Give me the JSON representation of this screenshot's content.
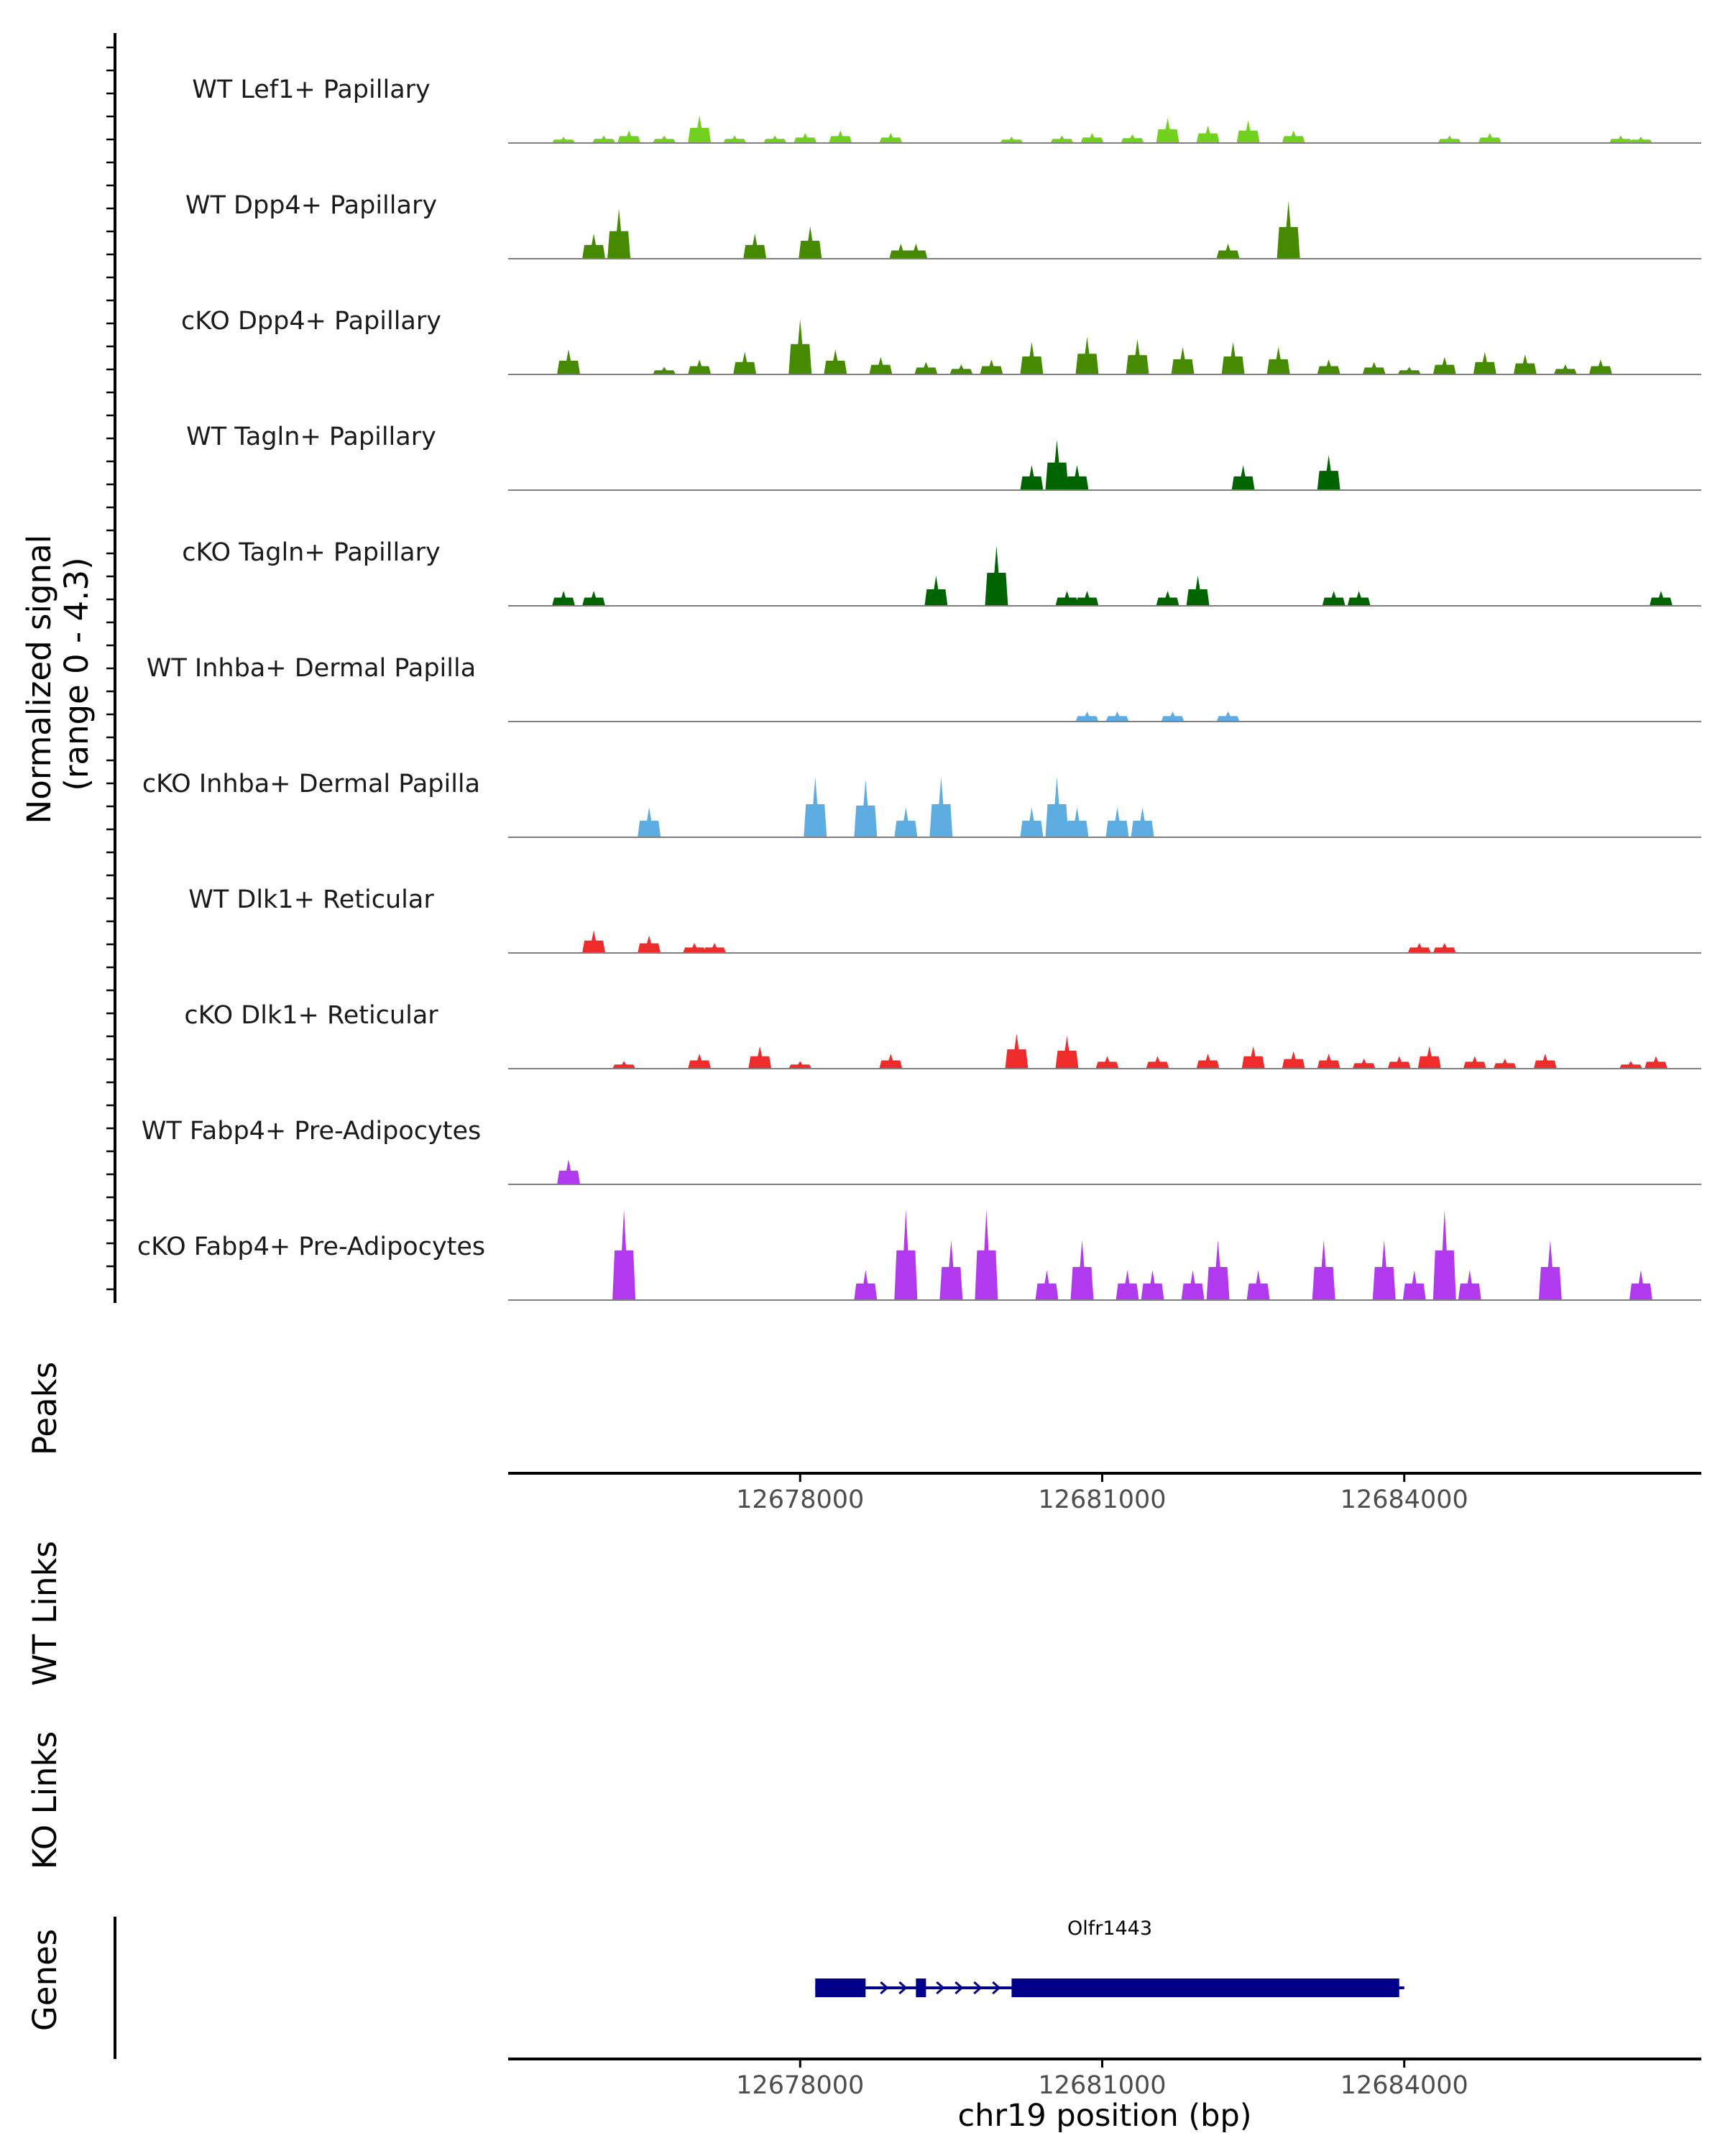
{
  "chart_data": {
    "type": "area",
    "title": "",
    "ylabel": "Normalized signal\n(range 0 - 4.3)",
    "xlabel": "chr19 position (bp)",
    "xlim": [
      12675100,
      12686950
    ],
    "ylim": [
      0,
      4.3
    ],
    "xticks": [
      12678000,
      12681000,
      12684000
    ],
    "xtick_labels": [
      "12678000",
      "12681000",
      "12684000"
    ],
    "tracks": [
      {
        "name": "WT Lef1+ Papillary",
        "color": "#72d11f",
        "peaks": [
          [
            12675650,
            0.25
          ],
          [
            12676050,
            0.3
          ],
          [
            12676300,
            0.5
          ],
          [
            12676650,
            0.3
          ],
          [
            12677000,
            1.1
          ],
          [
            12677350,
            0.3
          ],
          [
            12677750,
            0.3
          ],
          [
            12678050,
            0.4
          ],
          [
            12678400,
            0.5
          ],
          [
            12678900,
            0.4
          ],
          [
            12680100,
            0.25
          ],
          [
            12680600,
            0.3
          ],
          [
            12680900,
            0.4
          ],
          [
            12681300,
            0.35
          ],
          [
            12681650,
            1.0
          ],
          [
            12682050,
            0.7
          ],
          [
            12682450,
            0.9
          ],
          [
            12682900,
            0.5
          ],
          [
            12684450,
            0.3
          ],
          [
            12684850,
            0.4
          ],
          [
            12686150,
            0.3
          ],
          [
            12686350,
            0.25
          ]
        ]
      },
      {
        "name": "WT Dpp4+ Papillary",
        "color": "#458a00",
        "peaks": [
          [
            12675950,
            1.0
          ],
          [
            12676200,
            2.0
          ],
          [
            12677550,
            1.0
          ],
          [
            12678100,
            1.3
          ],
          [
            12679000,
            0.6
          ],
          [
            12679150,
            0.6
          ],
          [
            12682250,
            0.6
          ],
          [
            12682850,
            2.3
          ]
        ]
      },
      {
        "name": "cKO Dpp4+ Papillary",
        "color": "#458a00",
        "peaks": [
          [
            12675700,
            1.0
          ],
          [
            12676650,
            0.3
          ],
          [
            12677000,
            0.6
          ],
          [
            12677450,
            0.9
          ],
          [
            12678000,
            2.2
          ],
          [
            12678350,
            1.0
          ],
          [
            12678800,
            0.7
          ],
          [
            12679250,
            0.5
          ],
          [
            12679600,
            0.4
          ],
          [
            12679900,
            0.6
          ],
          [
            12680300,
            1.3
          ],
          [
            12680850,
            1.5
          ],
          [
            12681350,
            1.4
          ],
          [
            12681800,
            1.1
          ],
          [
            12682300,
            1.3
          ],
          [
            12682750,
            1.1
          ],
          [
            12683250,
            0.6
          ],
          [
            12683700,
            0.5
          ],
          [
            12684050,
            0.3
          ],
          [
            12684400,
            0.7
          ],
          [
            12684800,
            0.9
          ],
          [
            12685200,
            0.8
          ],
          [
            12685600,
            0.4
          ],
          [
            12685950,
            0.6
          ]
        ]
      },
      {
        "name": "WT Tagln+ Papillary",
        "color": "#006400",
        "peaks": [
          [
            12680300,
            1.0
          ],
          [
            12680550,
            2.0
          ],
          [
            12680750,
            1.0
          ],
          [
            12682400,
            1.0
          ],
          [
            12683250,
            1.4
          ]
        ]
      },
      {
        "name": "cKO Tagln+ Papillary",
        "color": "#006400",
        "peaks": [
          [
            12675650,
            0.6
          ],
          [
            12675950,
            0.6
          ],
          [
            12679350,
            1.2
          ],
          [
            12679950,
            2.4
          ],
          [
            12680650,
            0.6
          ],
          [
            12680850,
            0.6
          ],
          [
            12681650,
            0.6
          ],
          [
            12681950,
            1.2
          ],
          [
            12683300,
            0.6
          ],
          [
            12683550,
            0.6
          ],
          [
            12686550,
            0.6
          ]
        ]
      },
      {
        "name": "WT Inhba+ Dermal Papilla",
        "color": "#5dade2",
        "peaks": [
          [
            12680850,
            0.4
          ],
          [
            12681150,
            0.4
          ],
          [
            12681700,
            0.4
          ],
          [
            12682250,
            0.4
          ]
        ]
      },
      {
        "name": "cKO Inhba+ Dermal Papilla",
        "color": "#5dade2",
        "peaks": [
          [
            12676500,
            1.2
          ],
          [
            12678150,
            2.4
          ],
          [
            12678650,
            2.3
          ],
          [
            12679050,
            1.2
          ],
          [
            12679400,
            2.4
          ],
          [
            12680300,
            1.2
          ],
          [
            12680550,
            2.4
          ],
          [
            12680750,
            1.2
          ],
          [
            12681150,
            1.2
          ],
          [
            12681400,
            1.2
          ]
        ]
      },
      {
        "name": "WT Dlk1+ Reticular",
        "color": "#ee2c2c",
        "peaks": [
          [
            12675950,
            0.9
          ],
          [
            12676500,
            0.7
          ],
          [
            12676950,
            0.4
          ],
          [
            12677150,
            0.4
          ],
          [
            12684150,
            0.4
          ],
          [
            12684400,
            0.4
          ]
        ]
      },
      {
        "name": "cKO Dlk1+ Reticular",
        "color": "#ee2c2c",
        "peaks": [
          [
            12676250,
            0.3
          ],
          [
            12677000,
            0.6
          ],
          [
            12677600,
            0.9
          ],
          [
            12678000,
            0.3
          ],
          [
            12678900,
            0.6
          ],
          [
            12680150,
            1.4
          ],
          [
            12680650,
            1.3
          ],
          [
            12681050,
            0.5
          ],
          [
            12681550,
            0.5
          ],
          [
            12682050,
            0.6
          ],
          [
            12682500,
            0.9
          ],
          [
            12682900,
            0.7
          ],
          [
            12683250,
            0.6
          ],
          [
            12683600,
            0.4
          ],
          [
            12683950,
            0.5
          ],
          [
            12684250,
            0.9
          ],
          [
            12684700,
            0.5
          ],
          [
            12685000,
            0.4
          ],
          [
            12685400,
            0.6
          ],
          [
            12686250,
            0.3
          ],
          [
            12686500,
            0.5
          ]
        ]
      },
      {
        "name": "WT Fabp4+ Pre-Adipocytes",
        "color": "#b23aee",
        "peaks": [
          [
            12675700,
            1.0
          ]
        ]
      },
      {
        "name": "cKO Fabp4+ Pre-Adipocytes",
        "color": "#b23aee",
        "peaks": [
          [
            12676250,
            3.6
          ],
          [
            12678650,
            1.2
          ],
          [
            12679050,
            3.6
          ],
          [
            12679500,
            2.4
          ],
          [
            12679850,
            3.6
          ],
          [
            12680450,
            1.2
          ],
          [
            12680800,
            2.4
          ],
          [
            12681250,
            1.2
          ],
          [
            12681500,
            1.2
          ],
          [
            12681900,
            1.2
          ],
          [
            12682150,
            2.4
          ],
          [
            12682550,
            1.2
          ],
          [
            12683200,
            2.4
          ],
          [
            12683800,
            2.4
          ],
          [
            12684100,
            1.2
          ],
          [
            12684400,
            3.6
          ],
          [
            12684650,
            1.2
          ],
          [
            12685450,
            2.4
          ],
          [
            12686350,
            1.2
          ]
        ]
      }
    ],
    "panels": [
      "Peaks",
      "WT Links",
      "KO Links",
      "Genes"
    ],
    "gene": {
      "name": "Olfr1443",
      "strand": "+",
      "start": 12678150,
      "end": 12684000,
      "exons": [
        [
          12678150,
          12678650
        ],
        [
          12679150,
          12679250
        ],
        [
          12680100,
          12683950
        ]
      ]
    }
  }
}
